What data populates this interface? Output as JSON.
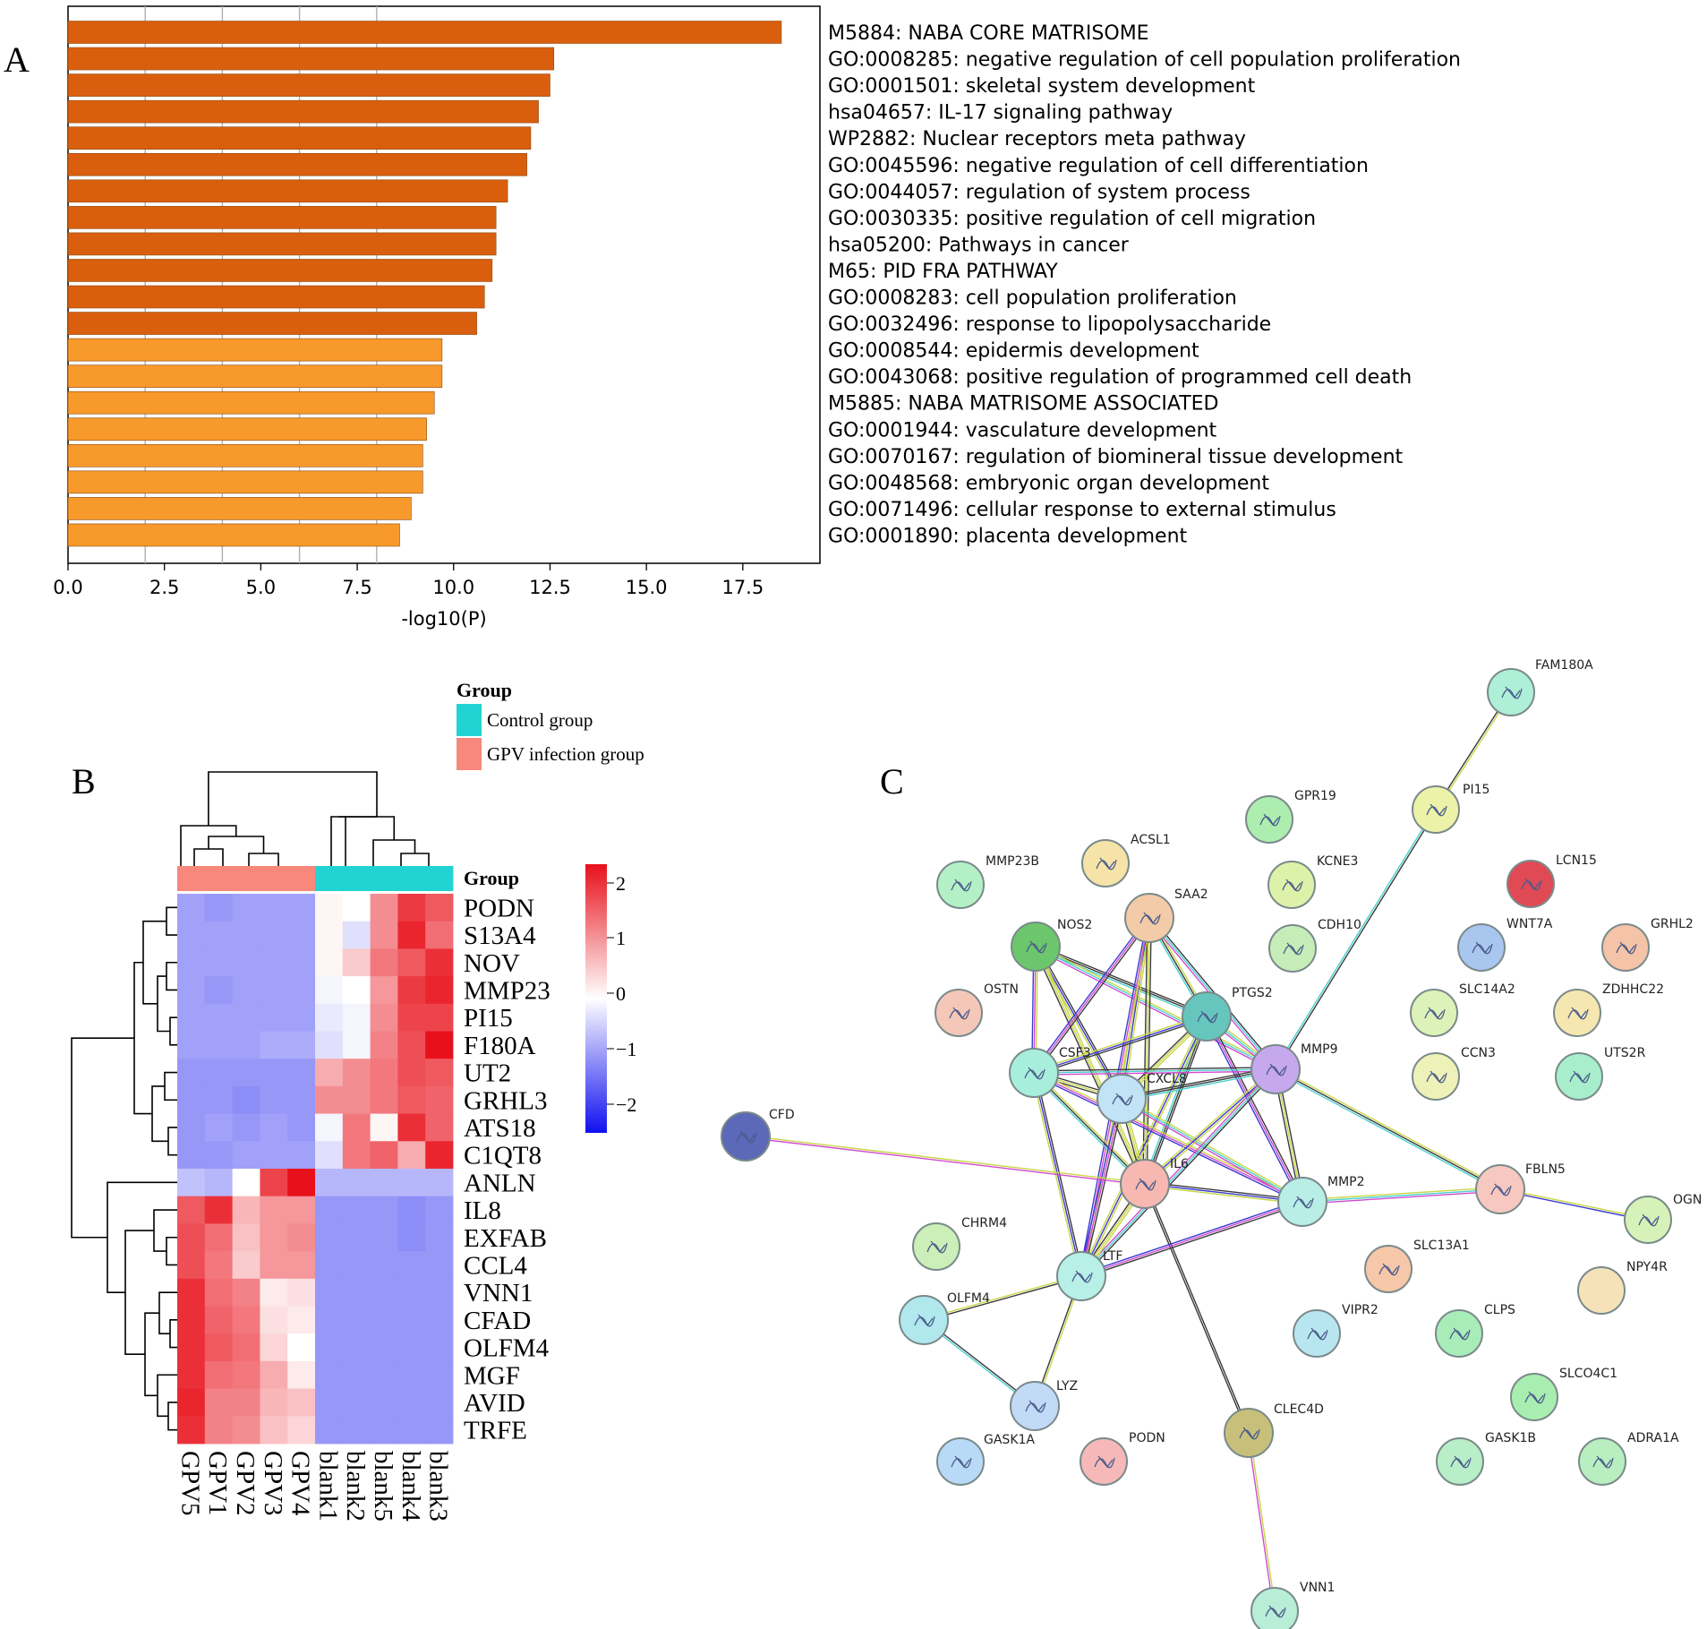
{
  "panels": {
    "a": "A",
    "b": "B",
    "c": "C"
  },
  "colors": {
    "bar_dark": "#D95F0E",
    "bar_light": "#F89A2B",
    "control": "#22D3D3",
    "gpv": "#F8877C",
    "heat_high": "#E8101A",
    "heat_low": "#1010F0"
  },
  "chart_data": [
    {
      "type": "bar",
      "orientation": "horizontal",
      "categories": [
        "M5884: NABA CORE MATRISOME",
        "GO:0008285: negative regulation of cell population proliferation",
        "GO:0001501: skeletal system development",
        "hsa04657: IL-17 signaling pathway",
        "WP2882: Nuclear receptors meta pathway",
        "GO:0045596: negative regulation of cell differentiation",
        "GO:0044057: regulation of system process",
        "GO:0030335: positive regulation of cell migration",
        "hsa05200: Pathways in cancer",
        "M65: PID FRA PATHWAY",
        "GO:0008283: cell population proliferation",
        "GO:0032496: response to lipopolysaccharide",
        "GO:0008544: epidermis development",
        "GO:0043068: positive regulation of programmed cell death",
        "M5885: NABA MATRISOME ASSOCIATED",
        "GO:0001944: vasculature development",
        "GO:0070167: regulation of biomineral tissue development",
        "GO:0048568: embryonic organ development",
        "GO:0071496: cellular response to external stimulus",
        "GO:0001890: placenta development"
      ],
      "values": [
        18.5,
        12.6,
        12.5,
        12.2,
        12.0,
        11.9,
        11.4,
        11.1,
        11.1,
        11.0,
        10.8,
        10.6,
        9.7,
        9.7,
        9.5,
        9.3,
        9.2,
        9.2,
        8.9,
        8.6
      ],
      "shade": [
        "dark",
        "dark",
        "dark",
        "dark",
        "dark",
        "dark",
        "dark",
        "dark",
        "dark",
        "dark",
        "dark",
        "dark",
        "light",
        "light",
        "light",
        "light",
        "light",
        "light",
        "light",
        "light"
      ],
      "xlabel": "-log10(P)",
      "xticks": [
        "0.0",
        "2.5",
        "5.0",
        "7.5",
        "10.0",
        "12.5",
        "15.0",
        "17.5"
      ],
      "xlim": [
        0,
        19.5
      ],
      "grid": "vertical"
    },
    {
      "type": "heatmap",
      "legend_title": "Group",
      "legend": [
        "Control group",
        "GPV infection group"
      ],
      "group_row_label": "Group",
      "columns": [
        "GPV5",
        "GPV1",
        "GPV2",
        "GPV3",
        "GPV4",
        "blank1",
        "blank2",
        "blank5",
        "blank4",
        "blank3"
      ],
      "column_groups": [
        "gpv",
        "gpv",
        "gpv",
        "gpv",
        "gpv",
        "control",
        "control",
        "control",
        "control",
        "control"
      ],
      "rows": [
        "PODN",
        "S13A4",
        "NOV",
        "MMP23",
        "PI15",
        "F180A",
        "UT2",
        "GRHL3",
        "ATS18",
        "C1QT8",
        "ANLN",
        "IL8",
        "EXFAB",
        "CCL4",
        "VNN1",
        "CFAD",
        "OLFM4",
        "MGF",
        "AVID",
        "TRFE"
      ],
      "values": [
        [
          -0.9,
          -1.0,
          -0.9,
          -0.9,
          -0.9,
          0.1,
          0.0,
          1.1,
          1.9,
          1.6
        ],
        [
          -0.9,
          -0.9,
          -0.9,
          -0.9,
          -0.9,
          0.1,
          -0.3,
          1.1,
          2.1,
          1.4
        ],
        [
          -0.9,
          -0.9,
          -0.9,
          -0.9,
          -0.9,
          0.1,
          0.5,
          1.3,
          1.6,
          2.0
        ],
        [
          -0.9,
          -1.0,
          -0.9,
          -0.9,
          -0.9,
          -0.1,
          0.0,
          1.0,
          1.9,
          2.1
        ],
        [
          -0.9,
          -0.9,
          -0.9,
          -0.9,
          -0.9,
          -0.2,
          -0.1,
          1.1,
          1.8,
          1.8
        ],
        [
          -0.9,
          -0.9,
          -0.9,
          -0.8,
          -0.8,
          -0.3,
          -0.1,
          1.2,
          1.7,
          2.3
        ],
        [
          -1.0,
          -1.0,
          -1.0,
          -1.0,
          -1.0,
          0.8,
          1.1,
          1.3,
          1.7,
          1.6
        ],
        [
          -1.0,
          -1.0,
          -1.1,
          -1.0,
          -1.0,
          1.1,
          1.1,
          1.3,
          1.6,
          1.5
        ],
        [
          -1.0,
          -0.9,
          -1.0,
          -0.9,
          -1.0,
          -0.1,
          1.3,
          0.1,
          2.0,
          1.5
        ],
        [
          -1.0,
          -1.0,
          -0.9,
          -0.9,
          -0.9,
          -0.3,
          1.3,
          1.5,
          0.8,
          2.1
        ],
        [
          -0.6,
          -0.7,
          0.0,
          1.8,
          2.3,
          -0.7,
          -0.7,
          -0.7,
          -0.7,
          -0.7
        ],
        [
          1.6,
          2.0,
          0.7,
          1.0,
          1.0,
          -1.0,
          -1.0,
          -1.0,
          -1.1,
          -1.0
        ],
        [
          1.7,
          1.4,
          0.6,
          1.0,
          1.1,
          -1.0,
          -1.0,
          -1.0,
          -1.1,
          -1.0
        ],
        [
          1.7,
          1.3,
          0.5,
          1.0,
          1.0,
          -1.0,
          -1.0,
          -1.0,
          -1.0,
          -1.0
        ],
        [
          2.0,
          1.4,
          1.2,
          0.2,
          0.3,
          -1.0,
          -1.0,
          -1.0,
          -1.0,
          -1.0
        ],
        [
          2.0,
          1.5,
          1.3,
          0.3,
          0.2,
          -1.0,
          -1.0,
          -1.0,
          -1.0,
          -1.0
        ],
        [
          2.0,
          1.6,
          1.4,
          0.4,
          0.0,
          -1.0,
          -1.0,
          -1.0,
          -1.0,
          -1.0
        ],
        [
          2.0,
          1.4,
          1.3,
          0.8,
          0.2,
          -1.0,
          -1.0,
          -1.0,
          -1.0,
          -1.0
        ],
        [
          2.1,
          1.2,
          1.2,
          0.7,
          0.6,
          -1.0,
          -1.0,
          -1.0,
          -1.0,
          -1.0
        ],
        [
          2.0,
          1.2,
          1.1,
          0.6,
          0.4,
          -1.0,
          -1.0,
          -1.0,
          -1.0,
          -1.0
        ]
      ],
      "colorbar_ticks": [
        "2",
        "1",
        "0",
        "−1",
        "−2"
      ],
      "clim": [
        -2.3,
        2.3
      ]
    },
    {
      "type": "network",
      "nodes": [
        {
          "id": "FAM180A",
          "color": "#AEEFD8"
        },
        {
          "id": "PI15",
          "color": "#ECF2A8"
        },
        {
          "id": "GPR19",
          "color": "#AEEDB0"
        },
        {
          "id": "ACSL1",
          "color": "#F6E3A8"
        },
        {
          "id": "MMP23B",
          "color": "#B4F0C6"
        },
        {
          "id": "KCNE3",
          "color": "#DDF2A8"
        },
        {
          "id": "LCN15",
          "color": "#E04A55"
        },
        {
          "id": "SAA2",
          "color": "#F3CBA8"
        },
        {
          "id": "NOS2",
          "color": "#6CC66C"
        },
        {
          "id": "CDH10",
          "color": "#C6EDB8"
        },
        {
          "id": "WNT7A",
          "color": "#A8C6EE"
        },
        {
          "id": "GRHL2",
          "color": "#F5C3A8"
        },
        {
          "id": "OSTN",
          "color": "#F5C7B8"
        },
        {
          "id": "PTGS2",
          "color": "#66C6BE"
        },
        {
          "id": "SLC14A2",
          "color": "#DDF2B8"
        },
        {
          "id": "ZDHHC22",
          "color": "#F6E6B0"
        },
        {
          "id": "CSF3",
          "color": "#A8EEDC"
        },
        {
          "id": "CXCL8",
          "color": "#C2E2F6"
        },
        {
          "id": "MMP9",
          "color": "#C6A8EE"
        },
        {
          "id": "CCN3",
          "color": "#EEF2B8"
        },
        {
          "id": "UTS2R",
          "color": "#A8EECC"
        },
        {
          "id": "CFD",
          "color": "#5C68B8"
        },
        {
          "id": "IL6",
          "color": "#F6B8B0"
        },
        {
          "id": "MMP2",
          "color": "#B8EEE6"
        },
        {
          "id": "FBLN5",
          "color": "#F6C8C0"
        },
        {
          "id": "OGN",
          "color": "#D6F2B8"
        },
        {
          "id": "CHRM4",
          "color": "#CCEEB8"
        },
        {
          "id": "LTF",
          "color": "#B8F0E8"
        },
        {
          "id": "SLC13A1",
          "color": "#F6C7A8"
        },
        {
          "id": "NPY4R",
          "color": "#F6E2B8"
        },
        {
          "id": "OLFM4",
          "color": "#B0E8EE"
        },
        {
          "id": "VIPR2",
          "color": "#B8E6F0"
        },
        {
          "id": "CLPS",
          "color": "#A8ECB8"
        },
        {
          "id": "SLCO4C1",
          "color": "#A8EEB0"
        },
        {
          "id": "LYZ",
          "color": "#C2DAF6"
        },
        {
          "id": "CLEC4D",
          "color": "#C8C07A"
        },
        {
          "id": "GASK1A",
          "color": "#B8DAF6"
        },
        {
          "id": "PODN",
          "color": "#F6B8B8"
        },
        {
          "id": "GASK1B",
          "color": "#B8EEC8"
        },
        {
          "id": "ADRA1A",
          "color": "#B8EEC0"
        },
        {
          "id": "VNN1",
          "color": "#B8EED8"
        }
      ],
      "edges": [
        [
          "FAM180A",
          "PI15"
        ],
        [
          "PI15",
          "MMP9"
        ],
        [
          "NOS2",
          "CSF3"
        ],
        [
          "NOS2",
          "CXCL8"
        ],
        [
          "NOS2",
          "IL6"
        ],
        [
          "NOS2",
          "PTGS2"
        ],
        [
          "NOS2",
          "MMP9"
        ],
        [
          "SAA2",
          "CSF3"
        ],
        [
          "SAA2",
          "CXCL8"
        ],
        [
          "SAA2",
          "IL6"
        ],
        [
          "SAA2",
          "PTGS2"
        ],
        [
          "SAA2",
          "MMP9"
        ],
        [
          "SAA2",
          "LTF"
        ],
        [
          "PTGS2",
          "CSF3"
        ],
        [
          "PTGS2",
          "CXCL8"
        ],
        [
          "PTGS2",
          "IL6"
        ],
        [
          "PTGS2",
          "MMP9"
        ],
        [
          "PTGS2",
          "MMP2"
        ],
        [
          "PTGS2",
          "LTF"
        ],
        [
          "CSF3",
          "CXCL8"
        ],
        [
          "CSF3",
          "IL6"
        ],
        [
          "CSF3",
          "MMP9"
        ],
        [
          "CSF3",
          "MMP2"
        ],
        [
          "CSF3",
          "LTF"
        ],
        [
          "CXCL8",
          "IL6"
        ],
        [
          "CXCL8",
          "MMP9"
        ],
        [
          "CXCL8",
          "MMP2"
        ],
        [
          "CXCL8",
          "LTF"
        ],
        [
          "MMP9",
          "IL6"
        ],
        [
          "MMP9",
          "MMP2"
        ],
        [
          "MMP9",
          "FBLN5"
        ],
        [
          "MMP9",
          "LTF"
        ],
        [
          "CFD",
          "IL6"
        ],
        [
          "IL6",
          "MMP2"
        ],
        [
          "IL6",
          "LTF"
        ],
        [
          "IL6",
          "CLEC4D"
        ],
        [
          "MMP2",
          "FBLN5"
        ],
        [
          "MMP2",
          "LTF"
        ],
        [
          "FBLN5",
          "OGN"
        ],
        [
          "LTF",
          "OLFM4"
        ],
        [
          "LTF",
          "LYZ"
        ],
        [
          "OLFM4",
          "LYZ"
        ],
        [
          "CLEC4D",
          "VNN1"
        ]
      ]
    }
  ]
}
